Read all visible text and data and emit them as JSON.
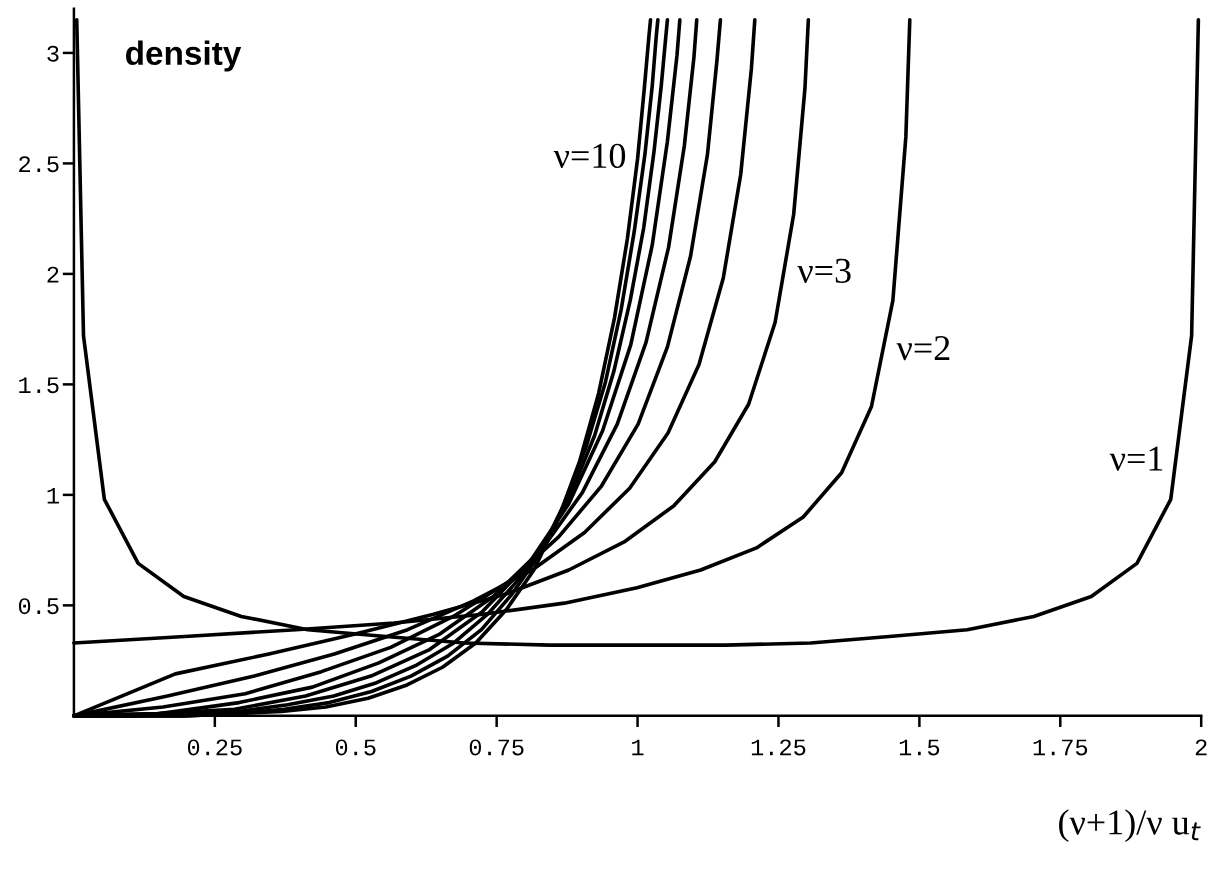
{
  "chart_data": {
    "type": "line",
    "ylabel": "density",
    "xlabel": "(ν+1)/ν u$_{t}$",
    "xlim": [
      0,
      2
    ],
    "ylim": [
      0,
      3.2
    ],
    "xticks": [
      0.25,
      0.5,
      0.75,
      1,
      1.25,
      1.5,
      1.75,
      2
    ],
    "yticks": [
      0.5,
      1,
      1.5,
      2,
      2.5,
      3
    ],
    "grid": false,
    "legend": false,
    "marker": "none",
    "line_style": "solid",
    "series": [
      {
        "name": "ν=1",
        "color": "#000000",
        "x": [
          0.005,
          0.017,
          0.054,
          0.114,
          0.195,
          0.297,
          0.415,
          0.548,
          0.693,
          0.844,
          1.0,
          1.156,
          1.307,
          1.452,
          1.585,
          1.703,
          1.805,
          1.886,
          1.946,
          1.983,
          1.995
        ],
        "values": [
          3.15,
          1.72,
          0.98,
          0.69,
          0.54,
          0.45,
          0.39,
          0.36,
          0.33,
          0.32,
          0.32,
          0.32,
          0.33,
          0.36,
          0.39,
          0.45,
          0.54,
          0.69,
          0.98,
          1.72,
          3.15
        ]
      },
      {
        "name": "ν=2",
        "color": "#000000",
        "x": [
          0.0,
          0.204,
          0.394,
          0.568,
          0.726,
          0.87,
          0.999,
          1.112,
          1.211,
          1.294,
          1.362,
          1.415,
          1.453,
          1.476,
          1.483
        ],
        "values": [
          0.33,
          0.36,
          0.39,
          0.42,
          0.46,
          0.51,
          0.58,
          0.66,
          0.76,
          0.9,
          1.1,
          1.4,
          1.88,
          2.62,
          3.15
        ]
      },
      {
        "name": "ν=3",
        "color": "#000000",
        "x": [
          0.0,
          0.18,
          0.346,
          0.499,
          0.638,
          0.765,
          0.878,
          0.978,
          1.064,
          1.137,
          1.197,
          1.244,
          1.277,
          1.297,
          1.303
        ],
        "values": [
          0,
          0.19,
          0.28,
          0.37,
          0.46,
          0.55,
          0.66,
          0.79,
          0.95,
          1.15,
          1.41,
          1.78,
          2.27,
          2.84,
          3.15
        ]
      },
      {
        "color": "#000000",
        "x": [
          0.0,
          0.166,
          0.32,
          0.462,
          0.592,
          0.709,
          0.813,
          0.906,
          0.986,
          1.054,
          1.109,
          1.152,
          1.183,
          1.202,
          1.208
        ],
        "values": [
          0,
          0.09,
          0.18,
          0.28,
          0.39,
          0.52,
          0.66,
          0.83,
          1.03,
          1.28,
          1.59,
          1.98,
          2.45,
          2.93,
          3.15
        ]
      },
      {
        "color": "#000000",
        "x": [
          0.0,
          0.158,
          0.304,
          0.439,
          0.562,
          0.673,
          0.773,
          0.86,
          0.936,
          1.001,
          1.053,
          1.094,
          1.124,
          1.141,
          1.147
        ],
        "values": [
          0,
          0.04,
          0.1,
          0.2,
          0.31,
          0.45,
          0.61,
          0.81,
          1.04,
          1.32,
          1.67,
          2.08,
          2.54,
          2.97,
          3.15
        ]
      },
      {
        "color": "#000000",
        "x": [
          0.0,
          0.152,
          0.293,
          0.423,
          0.541,
          0.649,
          0.744,
          0.829,
          0.902,
          0.964,
          1.015,
          1.055,
          1.083,
          1.1,
          1.105
        ],
        "values": [
          0,
          0.01,
          0.06,
          0.13,
          0.24,
          0.37,
          0.54,
          0.75,
          1.01,
          1.32,
          1.69,
          2.12,
          2.58,
          2.98,
          3.15
        ]
      },
      {
        "color": "#000000",
        "x": [
          0.0,
          0.148,
          0.285,
          0.411,
          0.527,
          0.631,
          0.724,
          0.807,
          0.878,
          0.938,
          0.988,
          1.026,
          1.053,
          1.07,
          1.075
        ],
        "values": [
          0,
          0.01,
          0.03,
          0.09,
          0.18,
          0.3,
          0.47,
          0.69,
          0.96,
          1.29,
          1.68,
          2.13,
          2.6,
          2.99,
          3.15
        ]
      },
      {
        "color": "#000000",
        "x": [
          0.0,
          0.103,
          0.2,
          0.292,
          0.379,
          0.461,
          0.537,
          0.608,
          0.674,
          0.734,
          0.79,
          0.84,
          0.884,
          0.924,
          0.958,
          0.987,
          1.011,
          1.029,
          1.042,
          1.05,
          1.053
        ],
        "values": [
          0,
          0.0,
          0.01,
          0.02,
          0.05,
          0.09,
          0.15,
          0.23,
          0.33,
          0.46,
          0.62,
          0.8,
          1.02,
          1.27,
          1.56,
          1.88,
          2.21,
          2.55,
          2.85,
          3.07,
          3.15
        ]
      },
      {
        "color": "#000000",
        "x": [
          0.0,
          0.101,
          0.197,
          0.287,
          0.373,
          0.453,
          0.528,
          0.598,
          0.663,
          0.723,
          0.777,
          0.826,
          0.87,
          0.909,
          0.943,
          0.971,
          0.994,
          1.013,
          1.026,
          1.033,
          1.036
        ],
        "values": [
          0,
          0.0,
          0.0,
          0.01,
          0.03,
          0.06,
          0.11,
          0.18,
          0.27,
          0.39,
          0.55,
          0.73,
          0.96,
          1.22,
          1.51,
          1.84,
          2.19,
          2.54,
          2.85,
          3.07,
          3.15
        ]
      },
      {
        "name": "ν=10",
        "color": "#000000",
        "x": [
          0.0,
          0.1,
          0.194,
          0.284,
          0.368,
          0.447,
          0.522,
          0.591,
          0.654,
          0.713,
          0.767,
          0.816,
          0.859,
          0.897,
          0.931,
          0.959,
          0.982,
          1.0,
          1.012,
          1.02,
          1.023
        ],
        "values": [
          0,
          0.0,
          0.0,
          0.01,
          0.02,
          0.04,
          0.08,
          0.14,
          0.22,
          0.33,
          0.48,
          0.66,
          0.89,
          1.15,
          1.46,
          1.8,
          2.16,
          2.52,
          2.84,
          3.07,
          3.15
        ]
      }
    ]
  }
}
